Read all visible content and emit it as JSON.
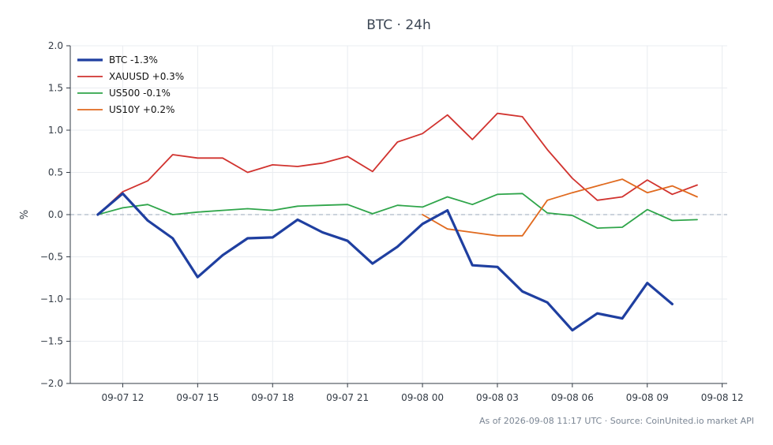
{
  "chart_data": {
    "type": "line",
    "title": "BTC · 24h",
    "ylabel": "%",
    "xlabel": "",
    "ylim": [
      -2.0,
      2.0
    ],
    "yticks": [
      "2.0",
      "1.5",
      "1.0",
      "0.5",
      "0.0",
      "−0.5",
      "−1.0",
      "−1.5",
      "−2.0"
    ],
    "xticks": [
      "09-07 12",
      "09-07 15",
      "09-07 18",
      "09-07 21",
      "09-08 00",
      "09-08 03",
      "09-08 06",
      "09-08 09",
      "09-08 12"
    ],
    "x_unit": "hours from 09-07 12:00",
    "xlim": [
      -2.1,
      24.2
    ],
    "grid": true,
    "legend_position": "top-left",
    "reference_line": 0.0,
    "series": [
      {
        "name": "BTC -1.3%",
        "color": "#1f3fa0",
        "linewidth": 3.2,
        "x": [
          -1,
          0,
          1,
          2,
          3,
          4,
          5,
          6,
          7,
          8,
          9,
          10,
          11,
          12,
          13,
          14,
          15,
          16,
          17,
          18,
          19,
          20,
          21,
          22
        ],
        "values": [
          0.0,
          0.25,
          -0.07,
          -0.28,
          -0.74,
          -0.48,
          -0.28,
          -0.27,
          -0.06,
          -0.21,
          -0.31,
          -0.58,
          -0.38,
          -0.11,
          0.05,
          -0.6,
          -0.62,
          -0.91,
          -1.04,
          -1.37,
          -1.17,
          -1.23,
          -0.81,
          -1.06
        ]
      },
      {
        "name": "XAUUSD +0.3%",
        "color": "#d1332f",
        "linewidth": 1.8,
        "x": [
          -1,
          0,
          1,
          2,
          3,
          4,
          5,
          6,
          7,
          8,
          9,
          10,
          11,
          12,
          13,
          14,
          15,
          16,
          17,
          18,
          19,
          20,
          21,
          22,
          23
        ],
        "values": [
          0.0,
          0.27,
          0.4,
          0.71,
          0.67,
          0.67,
          0.5,
          0.59,
          0.57,
          0.61,
          0.69,
          0.51,
          0.86,
          0.96,
          1.18,
          0.89,
          1.2,
          1.16,
          0.77,
          0.43,
          0.17,
          0.21,
          0.41,
          0.24,
          0.35
        ]
      },
      {
        "name": "US500 -0.1%",
        "color": "#2fa54a",
        "linewidth": 1.8,
        "x": [
          -1,
          0,
          1,
          2,
          3,
          4,
          5,
          6,
          7,
          8,
          9,
          10,
          11,
          12,
          13,
          14,
          15,
          16,
          17,
          18,
          19,
          20,
          21,
          22,
          23
        ],
        "values": [
          0.0,
          0.08,
          0.12,
          0.0,
          0.03,
          0.05,
          0.07,
          0.05,
          0.1,
          0.11,
          0.12,
          0.01,
          0.11,
          0.09,
          0.21,
          0.12,
          0.24,
          0.25,
          0.02,
          -0.01,
          -0.16,
          -0.15,
          0.06,
          -0.07,
          -0.06
        ]
      },
      {
        "name": "US10Y +0.2%",
        "color": "#e06a1f",
        "linewidth": 1.8,
        "x": [
          12,
          13,
          14,
          15,
          16,
          17,
          18,
          19,
          20,
          21,
          22,
          23
        ],
        "values": [
          0.0,
          -0.17,
          -0.21,
          -0.25,
          -0.25,
          0.17,
          0.26,
          0.34,
          0.42,
          0.26,
          0.34,
          0.21
        ]
      }
    ]
  },
  "footer": "As of 2026-09-08 11:17 UTC · Source: CoinUnited.io market API"
}
